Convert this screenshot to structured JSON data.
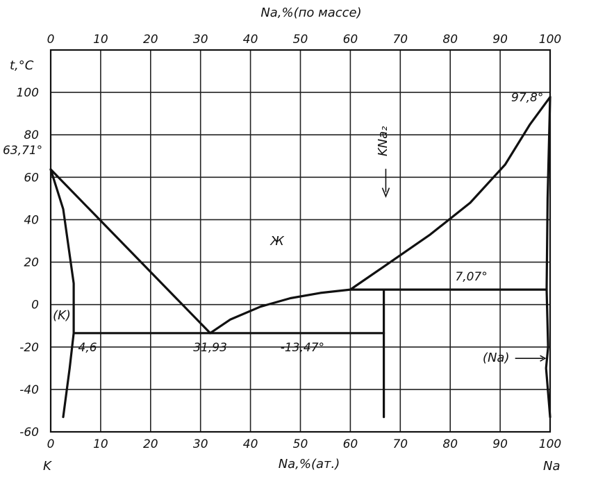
{
  "chart_data": {
    "type": "phase-diagram",
    "top_axis_label": "Na,%(по массе)",
    "top_ticks": [
      "0",
      "10",
      "20",
      "30",
      "40",
      "50",
      "60",
      "70",
      "80",
      "90",
      "100"
    ],
    "top_tick_at_pct": [
      0,
      10,
      20,
      30,
      40,
      50,
      60,
      70,
      80,
      90,
      100
    ],
    "bottom_axis_label": "Na,%(ат.)",
    "bottom_ticks": [
      "0",
      "10",
      "20",
      "30",
      "40",
      "50",
      "60",
      "70",
      "80",
      "90",
      "100"
    ],
    "bottom_tick_values": [
      0,
      10,
      20,
      30,
      40,
      50,
      60,
      70,
      80,
      90,
      100
    ],
    "y_axis_label": "t,°C",
    "y_ticks": [
      "100",
      "80",
      "60",
      "40",
      "20",
      "0",
      "-20",
      "-40",
      "-60"
    ],
    "y_tick_values": [
      100,
      80,
      60,
      40,
      20,
      0,
      -20,
      -40,
      -60
    ],
    "xlim": [
      0,
      100
    ],
    "ylim": [
      -60,
      120
    ],
    "left_component": "K",
    "right_component": "Na",
    "annotations": {
      "k_melting": "63,71°",
      "na_melting": "97,8°",
      "peritectic": "7,07°",
      "eutectic_temp": "-13,47°",
      "eutectic_comp": "31,93",
      "k_solubility": "4,6",
      "liquid": "Ж",
      "compound": "KNa₂",
      "k_solid": "(K)",
      "na_solid": "(Na)"
    },
    "points": {
      "k_melt": [
        0,
        63.71
      ],
      "na_melt": [
        100,
        97.8
      ],
      "eutectic": [
        31.93,
        -13.47
      ],
      "peritectic": [
        60,
        7.07
      ],
      "compound_x": 66.7,
      "k_solubility_x": 4.6
    },
    "liquidus_k": [
      [
        0,
        63.71
      ],
      [
        31.93,
        -13.47
      ]
    ],
    "liquidus_mid": [
      [
        31.93,
        -13.47
      ],
      [
        36,
        -7
      ],
      [
        42,
        -1
      ],
      [
        48,
        3
      ],
      [
        54,
        5.5
      ],
      [
        60,
        7.07
      ]
    ],
    "liquidus_na": [
      [
        60,
        7.07
      ],
      [
        68,
        20
      ],
      [
        76,
        33
      ],
      [
        84,
        48
      ],
      [
        91,
        66
      ],
      [
        96,
        85
      ],
      [
        100,
        97.8
      ]
    ],
    "solvus_k": [
      [
        0,
        63.71
      ],
      [
        2.5,
        45
      ],
      [
        4.6,
        10
      ],
      [
        4.6,
        -13.47
      ],
      [
        3.8,
        -30
      ],
      [
        2.5,
        -53
      ]
    ],
    "solvus_na": [
      [
        100,
        97.8
      ],
      [
        99.5,
        50
      ],
      [
        99.3,
        7.07
      ],
      [
        99.6,
        -20
      ],
      [
        99.2,
        -30
      ],
      [
        100,
        -53
      ]
    ]
  }
}
